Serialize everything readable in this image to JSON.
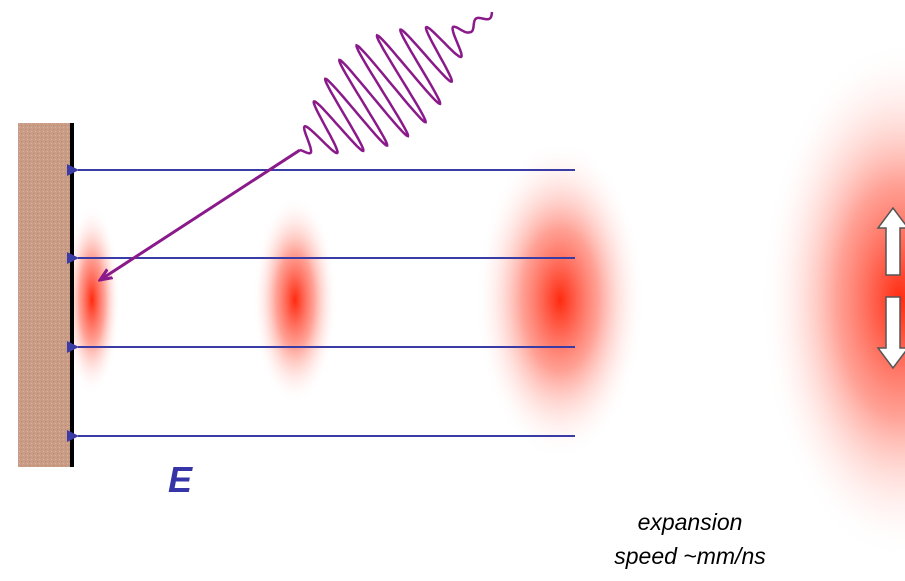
{
  "labels": {
    "field": "E",
    "caption": [
      "expansion",
      "speed ~mm/ns"
    ]
  }
}
